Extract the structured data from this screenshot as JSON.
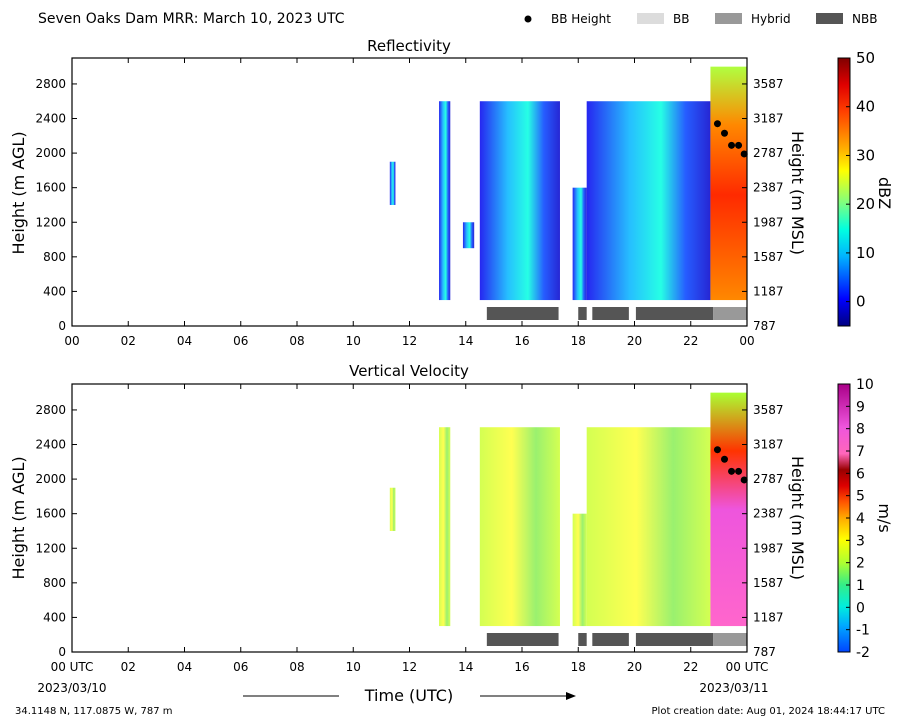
{
  "header": {
    "title": "Seven Oaks Dam MRR:  March 10, 2023 UTC",
    "legend": [
      {
        "label": "BB Height",
        "kind": "dot",
        "color": "#000000"
      },
      {
        "label": "BB",
        "kind": "box",
        "color": "#dcdcdc"
      },
      {
        "label": "Hybrid",
        "kind": "box",
        "color": "#999999"
      },
      {
        "label": "NBB",
        "kind": "box",
        "color": "#555555"
      }
    ]
  },
  "footer": {
    "coords": "34.1148 N, 117.0875 W, 787 m",
    "created": "Plot creation date: Aug 01, 2024 18:44:17 UTC",
    "start_label": "00 UTC",
    "start_date": "2023/03/10",
    "end_label": "00 UTC",
    "end_date": "2023/03/11"
  },
  "chart_data": [
    {
      "type": "heatmap",
      "title": "Reflectivity",
      "xlabel": "Time (UTC)",
      "ylabel": "Height (m AGL)",
      "ylabel_right": "Height (m MSL)",
      "x_range_hours": [
        0,
        24
      ],
      "ylim": [
        0,
        3100
      ],
      "x_ticks": [
        "00",
        "02",
        "04",
        "06",
        "08",
        "10",
        "12",
        "14",
        "16",
        "18",
        "20",
        "22",
        "00"
      ],
      "y_ticks": [
        0,
        400,
        800,
        1200,
        1600,
        2000,
        2400,
        2800
      ],
      "y_ticks_right": [
        787,
        1187,
        1587,
        1987,
        2387,
        2787,
        3187,
        3587
      ],
      "colorbar": {
        "label": "dBZ",
        "range": [
          -5,
          50
        ],
        "ticks": [
          0,
          10,
          20,
          30,
          40,
          50
        ]
      },
      "bb_height": [
        {
          "hour": 22.95,
          "height": 2340
        },
        {
          "hour": 23.2,
          "height": 2230
        },
        {
          "hour": 23.45,
          "height": 2090
        },
        {
          "hour": 23.7,
          "height": 2090
        },
        {
          "hour": 23.9,
          "height": 1990
        }
      ],
      "segments": [
        {
          "start": 14.75,
          "end": 17.3,
          "type": "NBB"
        },
        {
          "start": 18.0,
          "end": 18.3,
          "type": "NBB"
        },
        {
          "start": 18.5,
          "end": 19.8,
          "type": "NBB"
        },
        {
          "start": 20.05,
          "end": 22.8,
          "type": "NBB"
        },
        {
          "start": 22.8,
          "end": 24.0,
          "type": "Hybrid"
        }
      ],
      "echo_regions": [
        {
          "start": 11.3,
          "end": 11.5,
          "bottom": 1400,
          "top": 1900,
          "level": "low"
        },
        {
          "start": 13.05,
          "end": 13.45,
          "bottom": 300,
          "top": 2600,
          "level": "low"
        },
        {
          "start": 13.9,
          "end": 14.3,
          "bottom": 900,
          "top": 1200,
          "level": "low"
        },
        {
          "start": 14.5,
          "end": 17.35,
          "bottom": 300,
          "top": 2600,
          "level": "low"
        },
        {
          "start": 17.8,
          "end": 18.3,
          "bottom": 300,
          "top": 1600,
          "level": "low"
        },
        {
          "start": 18.3,
          "end": 22.7,
          "bottom": 300,
          "top": 2600,
          "level": "low"
        },
        {
          "start": 22.7,
          "end": 24.0,
          "bottom": 300,
          "top": 3000,
          "level": "high"
        }
      ]
    },
    {
      "type": "heatmap",
      "title": "Vertical Velocity",
      "xlabel": "Time (UTC)",
      "ylabel": "Height (m AGL)",
      "ylabel_right": "Height (m MSL)",
      "x_range_hours": [
        0,
        24
      ],
      "ylim": [
        0,
        3100
      ],
      "x_ticks": [
        "00 UTC",
        "02",
        "04",
        "06",
        "08",
        "10",
        "12",
        "14",
        "16",
        "18",
        "20",
        "22",
        "00 UTC"
      ],
      "y_ticks": [
        0,
        400,
        800,
        1200,
        1600,
        2000,
        2400,
        2800
      ],
      "y_ticks_right": [
        787,
        1187,
        1587,
        1987,
        2387,
        2787,
        3187,
        3587
      ],
      "colorbar": {
        "label": "m/s",
        "range": [
          -2,
          10
        ],
        "ticks": [
          -2,
          -1,
          0,
          1,
          2,
          3,
          4,
          5,
          6,
          7,
          8,
          9,
          10
        ]
      },
      "bb_height": [
        {
          "hour": 22.95,
          "height": 2340
        },
        {
          "hour": 23.2,
          "height": 2230
        },
        {
          "hour": 23.45,
          "height": 2090
        },
        {
          "hour": 23.7,
          "height": 2090
        },
        {
          "hour": 23.9,
          "height": 1990
        }
      ],
      "segments": [
        {
          "start": 14.75,
          "end": 17.3,
          "type": "NBB"
        },
        {
          "start": 18.0,
          "end": 18.3,
          "type": "NBB"
        },
        {
          "start": 18.5,
          "end": 19.8,
          "type": "NBB"
        },
        {
          "start": 20.05,
          "end": 22.8,
          "type": "NBB"
        },
        {
          "start": 22.8,
          "end": 24.0,
          "type": "Hybrid"
        }
      ],
      "echo_regions": [
        {
          "start": 11.3,
          "end": 11.5,
          "bottom": 1400,
          "top": 1900,
          "level": "low"
        },
        {
          "start": 13.05,
          "end": 13.45,
          "bottom": 300,
          "top": 2600,
          "level": "low"
        },
        {
          "start": 14.5,
          "end": 17.35,
          "bottom": 300,
          "top": 2600,
          "level": "low"
        },
        {
          "start": 17.8,
          "end": 18.3,
          "bottom": 300,
          "top": 1600,
          "level": "low"
        },
        {
          "start": 18.3,
          "end": 22.7,
          "bottom": 300,
          "top": 2600,
          "level": "low"
        },
        {
          "start": 22.7,
          "end": 24.0,
          "bottom": 300,
          "top": 3000,
          "level": "high"
        }
      ]
    }
  ]
}
